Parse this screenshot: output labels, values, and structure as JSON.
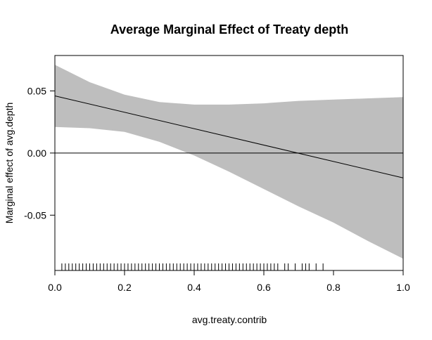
{
  "chart_data": {
    "type": "line",
    "title": "Average Marginal Effect of Treaty depth",
    "xlabel": "avg.treaty.contrib",
    "ylabel": "Marginal effect of avg.depth",
    "xlim": [
      0.0,
      1.0
    ],
    "ylim": [
      -0.0945,
      0.0785
    ],
    "x_ticks": [
      "0.0",
      "0.2",
      "0.4",
      "0.6",
      "0.8",
      "1.0"
    ],
    "y_ticks": [
      "0.05",
      "0.00",
      "-0.05"
    ],
    "reference_line_y": 0.0,
    "grid": false,
    "estimate": {
      "x": [
        0.0,
        1.0
      ],
      "y": [
        0.046,
        -0.02
      ]
    },
    "confidence_band": {
      "x": [
        0.0,
        0.1,
        0.2,
        0.3,
        0.4,
        0.5,
        0.6,
        0.7,
        0.8,
        0.9,
        1.0
      ],
      "upper": [
        0.071,
        0.057,
        0.047,
        0.041,
        0.039,
        0.039,
        0.04,
        0.042,
        0.043,
        0.044,
        0.045
      ],
      "lower": [
        0.021,
        0.02,
        0.017,
        0.009,
        -0.002,
        -0.015,
        -0.029,
        -0.043,
        -0.056,
        -0.071,
        -0.085
      ]
    },
    "rug_x": [
      0.02,
      0.03,
      0.04,
      0.05,
      0.06,
      0.07,
      0.08,
      0.09,
      0.1,
      0.11,
      0.12,
      0.13,
      0.14,
      0.15,
      0.16,
      0.17,
      0.18,
      0.19,
      0.2,
      0.21,
      0.22,
      0.23,
      0.24,
      0.25,
      0.26,
      0.27,
      0.28,
      0.29,
      0.3,
      0.31,
      0.32,
      0.33,
      0.34,
      0.35,
      0.36,
      0.37,
      0.38,
      0.39,
      0.4,
      0.41,
      0.42,
      0.43,
      0.44,
      0.45,
      0.46,
      0.47,
      0.48,
      0.49,
      0.5,
      0.51,
      0.52,
      0.53,
      0.54,
      0.55,
      0.56,
      0.57,
      0.58,
      0.59,
      0.6,
      0.61,
      0.62,
      0.63,
      0.64,
      0.66,
      0.67,
      0.69,
      0.71,
      0.72,
      0.73,
      0.75,
      0.77
    ]
  }
}
